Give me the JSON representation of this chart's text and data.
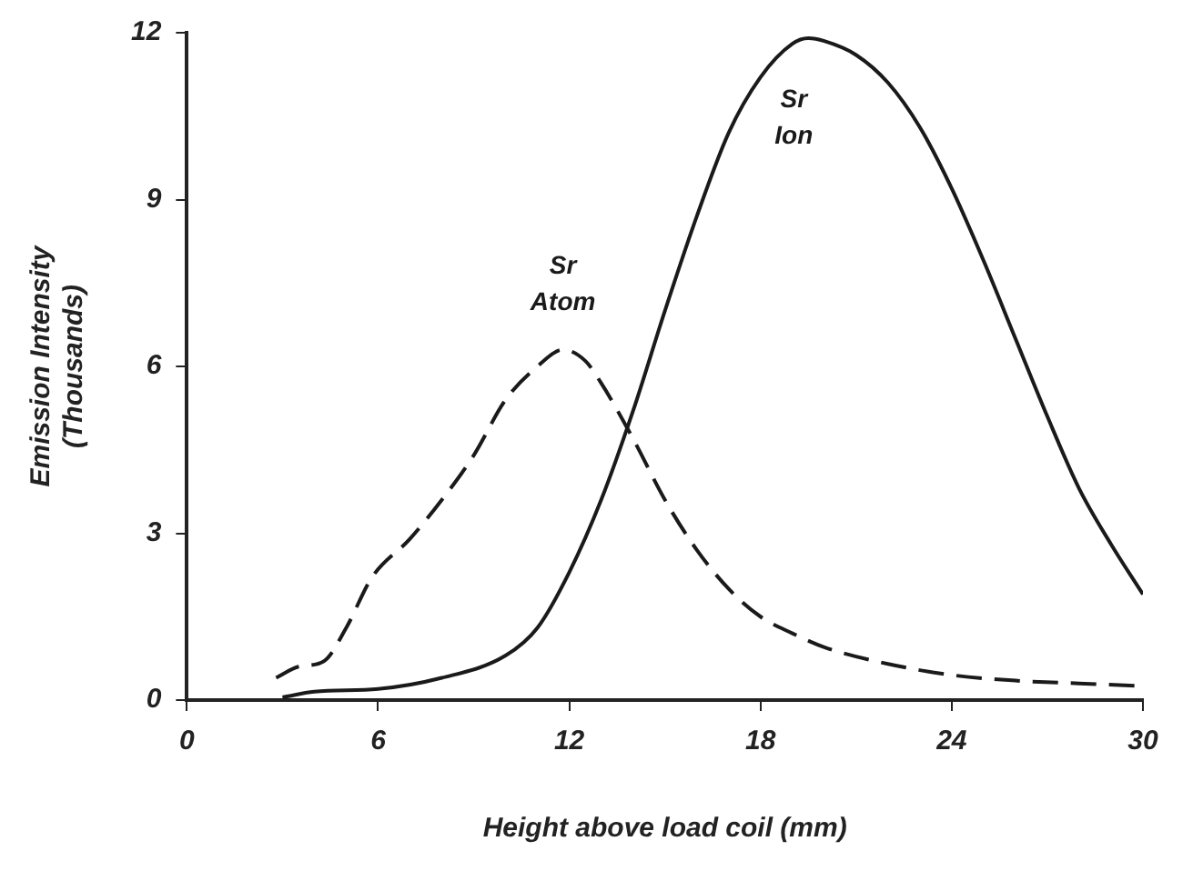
{
  "chart_data": {
    "type": "line",
    "xlabel": "Height above load coil (mm)",
    "ylabel": "Emission Intensity\n(Thousands)",
    "xlim": [
      0,
      30
    ],
    "xticks": [
      0,
      6,
      12,
      18,
      24,
      30
    ],
    "ylim": [
      0,
      12
    ],
    "yticks": [
      0,
      3,
      6,
      9,
      12
    ],
    "grid": false,
    "legend": false,
    "marker": "none",
    "series": [
      {
        "name": "Sr Atom",
        "color": "#1a1a1a",
        "line_style": "dashed",
        "x": [
          2.8,
          3.5,
          4.3,
          5,
          5.8,
          7,
          8,
          9,
          10,
          11,
          11.8,
          12.5,
          13,
          14,
          15,
          16,
          17,
          18,
          19,
          20,
          22,
          24,
          26,
          28,
          30
        ],
        "values": [
          0.4,
          0.6,
          0.7,
          1.3,
          2.2,
          2.9,
          3.6,
          4.4,
          5.4,
          6.0,
          6.3,
          6.1,
          5.7,
          4.7,
          3.6,
          2.7,
          2.0,
          1.5,
          1.2,
          0.95,
          0.65,
          0.45,
          0.35,
          0.3,
          0.25
        ]
      },
      {
        "name": "Sr Ion",
        "color": "#1a1a1a",
        "line_style": "solid",
        "x": [
          3,
          4,
          6,
          8,
          10,
          11,
          12,
          13,
          14,
          15,
          16,
          17,
          18,
          19,
          19.5,
          20,
          21,
          22,
          23,
          24,
          25,
          26,
          27,
          28,
          29,
          30
        ],
        "values": [
          0.05,
          0.15,
          0.2,
          0.4,
          0.8,
          1.3,
          2.3,
          3.6,
          5.2,
          7,
          8.7,
          10.2,
          11.2,
          11.8,
          11.9,
          11.85,
          11.6,
          11.1,
          10.3,
          9.2,
          7.9,
          6.5,
          5.1,
          3.8,
          2.8,
          1.9
        ]
      }
    ]
  }
}
